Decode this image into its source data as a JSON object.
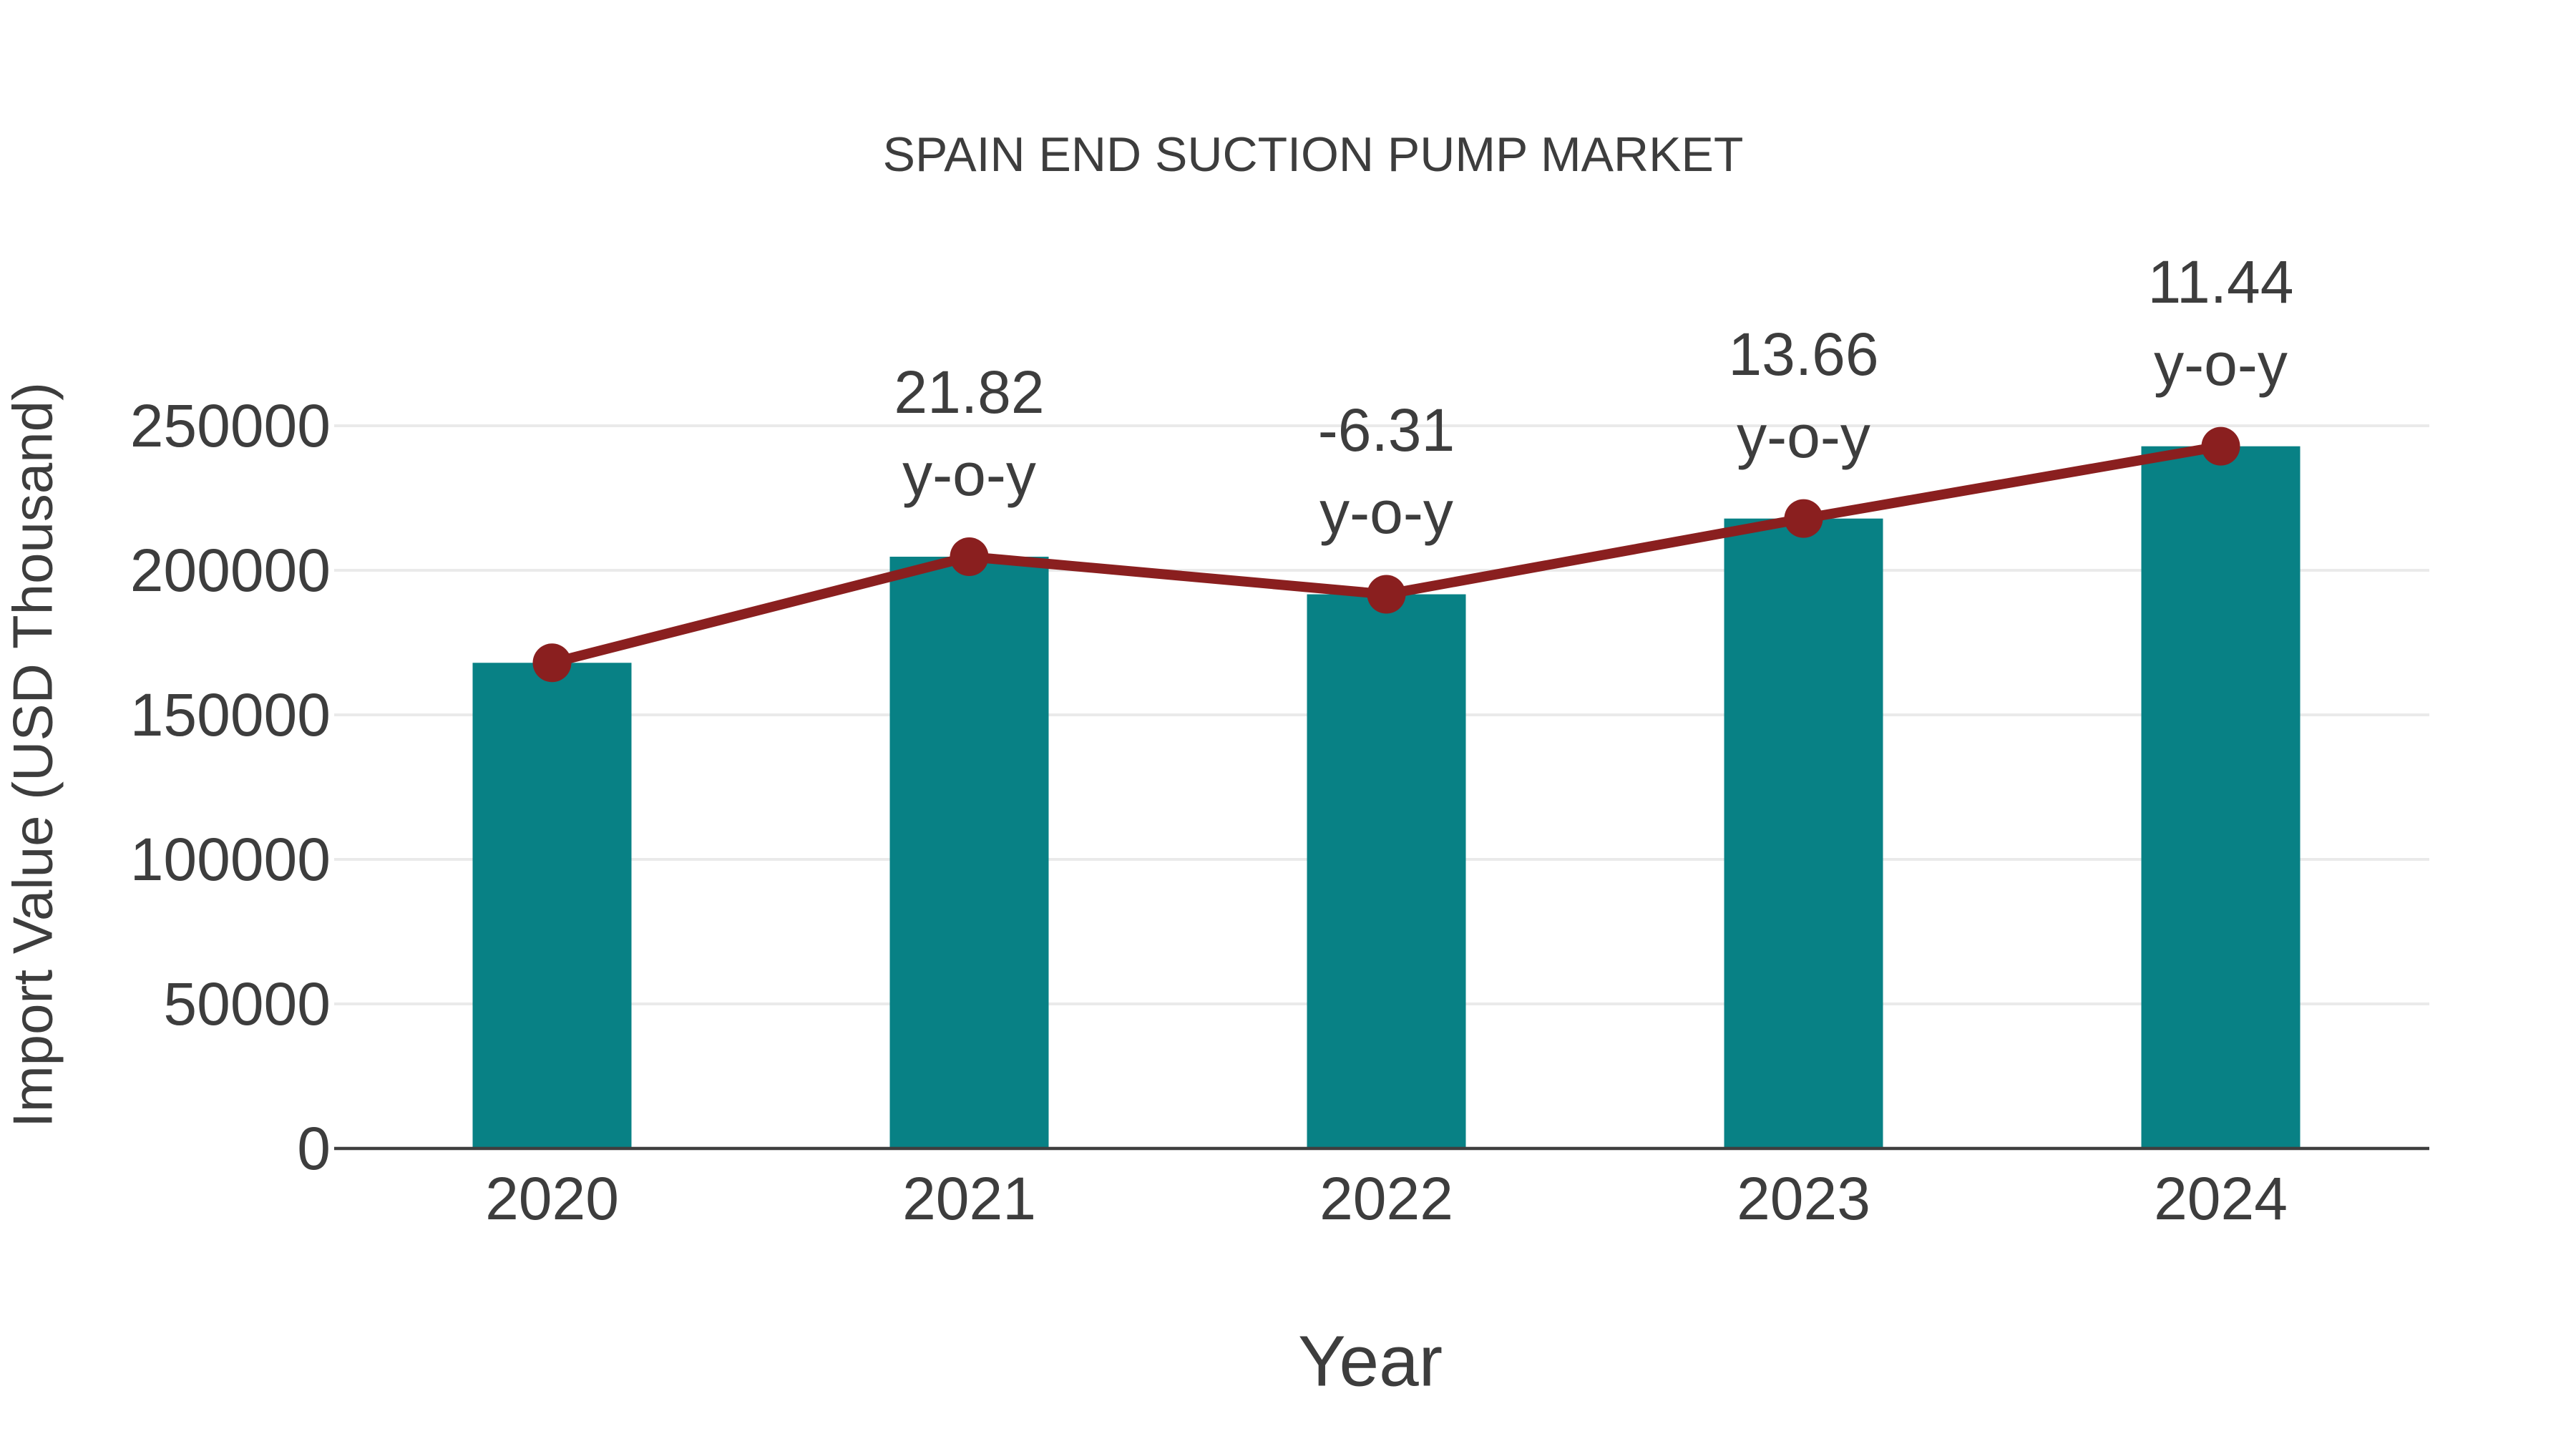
{
  "title": "SPAIN END SUCTION PUMP MARKET",
  "y_axis": {
    "label": "Import Value (USD Thousand)",
    "tick_labels": [
      "0",
      "50000",
      "100000",
      "150000",
      "200000",
      "250000"
    ],
    "tick_values": [
      0,
      50000,
      100000,
      150000,
      200000,
      250000
    ]
  },
  "x_axis": {
    "label": "Year",
    "tick_labels": [
      "2020",
      "2021",
      "2022",
      "2023",
      "2024"
    ]
  },
  "colors": {
    "bar": "#088185",
    "line": "#8a1f1f",
    "grid": "#eaeaea",
    "axis": "#3f3f3f",
    "text": "#3d3d3d"
  },
  "chart_data": {
    "type": "bar",
    "subtype": "bar-with-line-overlay",
    "title": "SPAIN END SUCTION PUMP MARKET",
    "xlabel": "Year",
    "ylabel": "Import Value (USD Thousand)",
    "categories": [
      "2020",
      "2021",
      "2022",
      "2023",
      "2024"
    ],
    "series": [
      {
        "name": "Import Value (bars)",
        "type": "bar",
        "values": [
          168000,
          204700,
          191700,
          217900,
          242900
        ]
      },
      {
        "name": "Import Value (trend line)",
        "type": "line",
        "values": [
          168000,
          204700,
          191700,
          217900,
          242900
        ]
      }
    ],
    "annotations": [
      {
        "category": "2021",
        "value": "21.82",
        "suffix": "y-o-y"
      },
      {
        "category": "2022",
        "value": "-6.31",
        "suffix": "y-o-y"
      },
      {
        "category": "2023",
        "value": "13.66",
        "suffix": "y-o-y"
      },
      {
        "category": "2024",
        "value": "11.44",
        "suffix": "y-o-y"
      }
    ],
    "ylim": [
      0,
      250000
    ],
    "grid": true,
    "legend": false
  }
}
